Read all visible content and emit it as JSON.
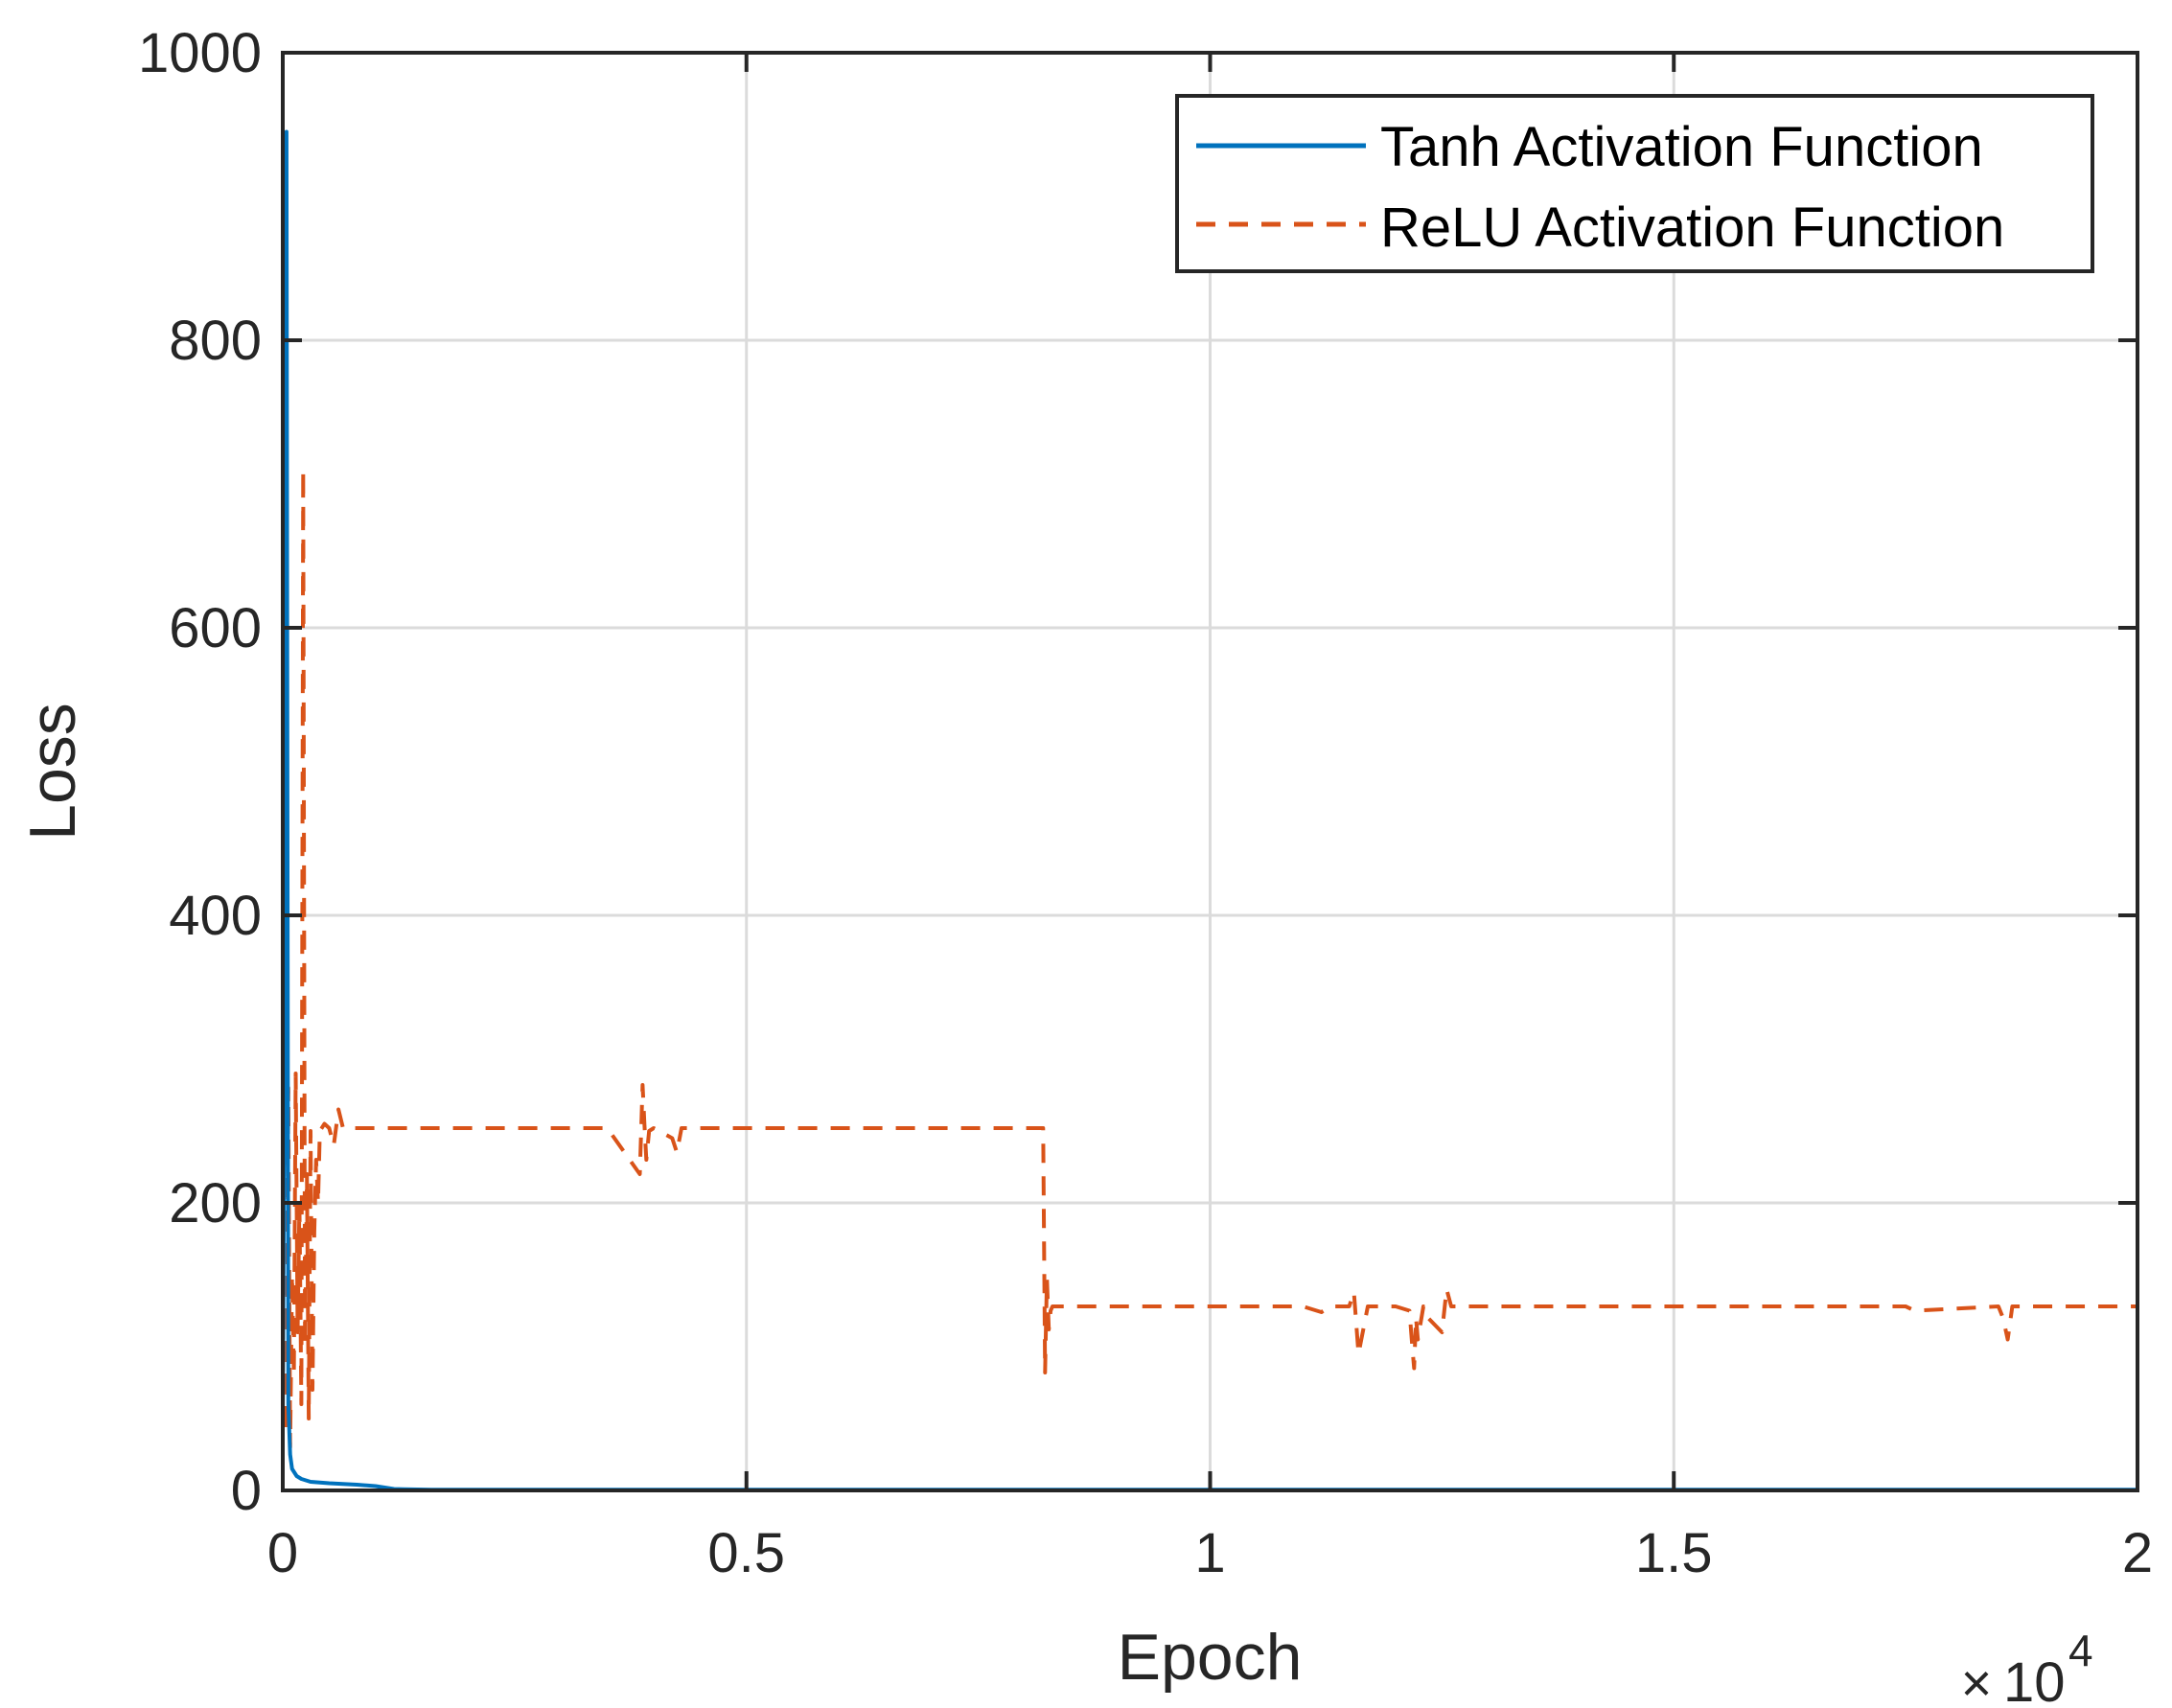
{
  "chart_data": {
    "type": "line",
    "title": "",
    "xlabel": "Epoch",
    "ylabel": "Loss",
    "x_scale_exponent": {
      "base": "10",
      "power": "4",
      "times": "×"
    },
    "xlim": [
      0,
      20000
    ],
    "ylim": [
      0,
      1000
    ],
    "xticks": [
      0,
      5000,
      10000,
      15000,
      20000
    ],
    "xtick_labels": [
      "0",
      "0.5",
      "1",
      "1.5",
      "2"
    ],
    "yticks": [
      0,
      200,
      400,
      600,
      800,
      1000
    ],
    "ytick_labels": [
      "0",
      "200",
      "400",
      "600",
      "800",
      "1000"
    ],
    "grid": true,
    "legend_position": "top-right",
    "colors": {
      "tanh": "#0072BD",
      "relu": "#D95319",
      "grid": "#DBDBDB",
      "axis": "#262626"
    },
    "series": [
      {
        "name": "Tanh Activation Function",
        "style": "solid",
        "x": [
          0,
          20,
          40,
          60,
          80,
          100,
          150,
          200,
          300,
          500,
          800,
          1000,
          1200,
          1300,
          1600,
          2000,
          5000,
          10000,
          15000,
          20000
        ],
        "y": [
          50,
          300,
          945,
          60,
          25,
          15,
          10,
          8,
          6,
          5,
          4,
          3,
          1,
          0.8,
          0.5,
          0.5,
          0.5,
          0.5,
          0.5,
          0.5
        ]
      },
      {
        "name": "ReLU Activation Function",
        "style": "dashed",
        "x": [
          0,
          20,
          40,
          60,
          80,
          100,
          120,
          140,
          160,
          180,
          200,
          220,
          240,
          260,
          280,
          300,
          320,
          340,
          360,
          380,
          400,
          450,
          500,
          550,
          600,
          650,
          700,
          1500,
          2500,
          3500,
          3850,
          3880,
          3900,
          3920,
          3950,
          4000,
          4200,
          4250,
          4300,
          4400,
          6000,
          7500,
          8200,
          8220,
          8240,
          8260,
          8280,
          8300,
          9000,
          10000,
          11000,
          11100,
          11200,
          11300,
          11500,
          11550,
          11600,
          11700,
          12000,
          12150,
          12180,
          12200,
          12220,
          12240,
          12300,
          12350,
          12500,
          12550,
          12600,
          13000,
          15000,
          17000,
          17500,
          17600,
          18500,
          18550,
          18600,
          18650,
          19000,
          20000
        ],
        "y": [
          60,
          320,
          40,
          280,
          30,
          150,
          80,
          290,
          110,
          200,
          60,
          710,
          100,
          220,
          50,
          250,
          70,
          180,
          230,
          200,
          250,
          255,
          252,
          240,
          265,
          252,
          252,
          252,
          252,
          252,
          220,
          282,
          255,
          230,
          250,
          252,
          245,
          235,
          252,
          252,
          252,
          252,
          252,
          82,
          148,
          112,
          125,
          128,
          128,
          128,
          128,
          126,
          124,
          128,
          128,
          138,
          95,
          128,
          128,
          125,
          100,
          85,
          120,
          105,
          128,
          120,
          110,
          140,
          128,
          128,
          128,
          128,
          128,
          125,
          128,
          120,
          105,
          128,
          128,
          128
        ]
      }
    ]
  }
}
